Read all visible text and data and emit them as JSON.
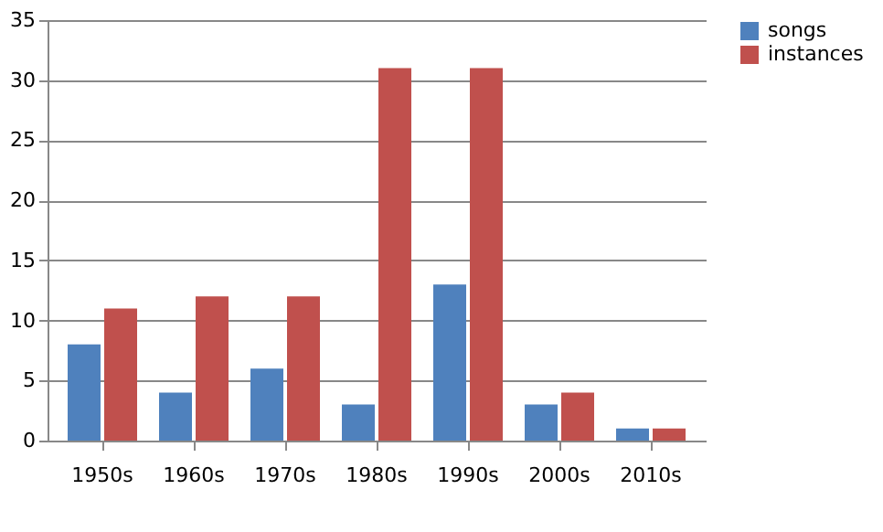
{
  "chart_data": {
    "type": "bar",
    "categories": [
      "1950s",
      "1960s",
      "1970s",
      "1980s",
      "1990s",
      "2000s",
      "2010s"
    ],
    "series": [
      {
        "name": "songs",
        "color": "#4f81bd",
        "values": [
          8,
          4,
          6,
          3,
          13,
          3,
          1
        ]
      },
      {
        "name": "instances",
        "color": "#c0504d",
        "values": [
          11,
          12,
          12,
          31,
          31,
          4,
          1
        ]
      }
    ],
    "ylim": [
      0,
      35
    ],
    "yticks": [
      0,
      5,
      10,
      15,
      20,
      25,
      30,
      35
    ],
    "grid": "y",
    "legend": "right"
  }
}
